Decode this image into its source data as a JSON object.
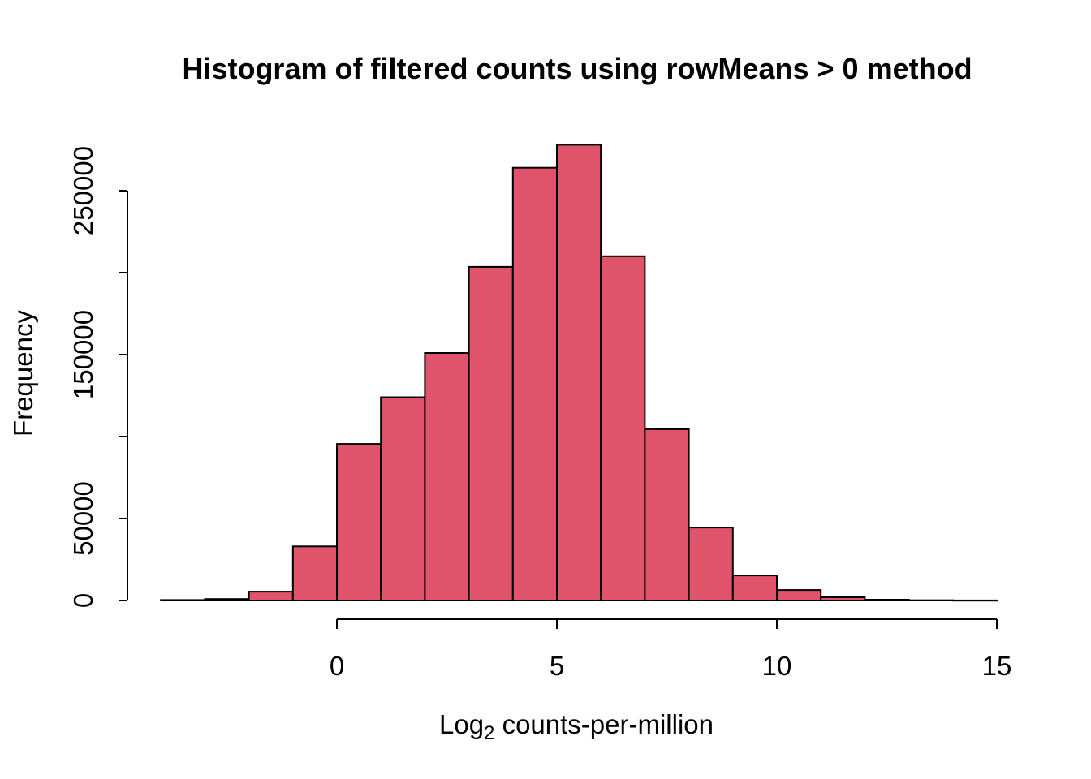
{
  "chart_data": {
    "type": "bar",
    "subtype": "histogram",
    "title": "Histogram of filtered counts using rowMeans > 0 method",
    "xlabel": {
      "prefix": "Log",
      "subscript": "2",
      "suffix": " counts-per-million"
    },
    "ylabel": "Frequency",
    "xlim": [
      -4,
      15
    ],
    "ylim": [
      0,
      250000
    ],
    "x_axis_line_range": [
      0,
      15
    ],
    "grid": false,
    "legend_position": "none",
    "bin_width": 1,
    "bin_edges": [
      -4,
      -3,
      -2,
      -1,
      0,
      1,
      2,
      3,
      4,
      5,
      6,
      7,
      8,
      9,
      10,
      11,
      12,
      13,
      14,
      15
    ],
    "counts": [
      300,
      900,
      5400,
      33000,
      95500,
      124000,
      151000,
      203500,
      264000,
      278000,
      210000,
      104500,
      44500,
      15300,
      6400,
      2000,
      500,
      150,
      50
    ],
    "xticks": [
      {
        "value": 0,
        "label": "0"
      },
      {
        "value": 5,
        "label": "5"
      },
      {
        "value": 10,
        "label": "10"
      },
      {
        "value": 15,
        "label": "15"
      }
    ],
    "yticks": [
      {
        "value": 0,
        "label": "0"
      },
      {
        "value": 50000,
        "label": "50000"
      },
      {
        "value": 100000,
        "label": ""
      },
      {
        "value": 150000,
        "label": "150000"
      },
      {
        "value": 200000,
        "label": ""
      },
      {
        "value": 250000,
        "label": "250000"
      }
    ],
    "colors": {
      "bar_fill": "#DF536B",
      "bar_stroke": "#000000",
      "axis": "#000000",
      "text": "#000000",
      "background": "#FFFFFF"
    }
  }
}
